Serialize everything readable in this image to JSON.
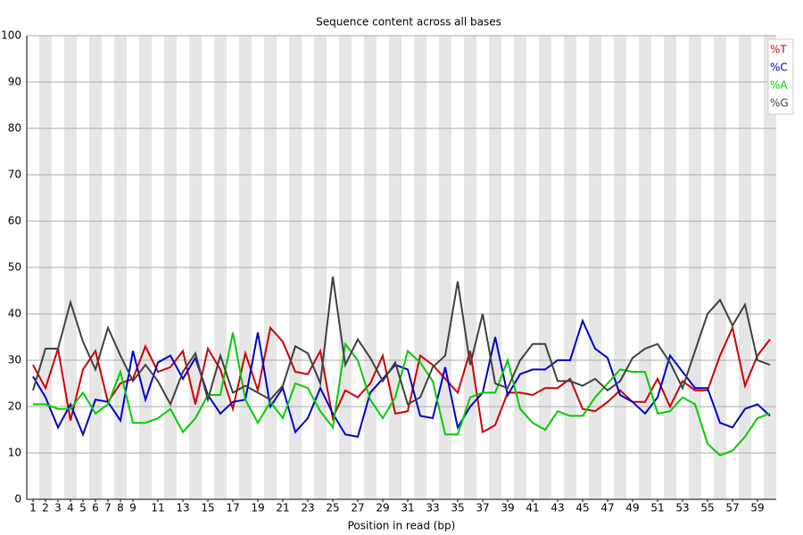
{
  "chart_data": {
    "type": "line",
    "title": "Sequence content across all bases",
    "xlabel": "Position in read (bp)",
    "x": [
      1,
      2,
      3,
      4,
      5,
      6,
      7,
      8,
      9,
      10,
      11,
      12,
      13,
      14,
      15,
      16,
      17,
      18,
      19,
      20,
      21,
      22,
      23,
      24,
      25,
      26,
      27,
      28,
      29,
      30,
      31,
      32,
      33,
      34,
      35,
      36,
      37,
      38,
      39,
      40,
      41,
      42,
      43,
      44,
      45,
      46,
      47,
      48,
      49,
      50,
      51,
      52,
      53,
      54,
      55,
      56,
      57,
      58,
      59,
      60
    ],
    "xlim": [
      0.5,
      60.5
    ],
    "xticks": [
      1,
      2,
      3,
      4,
      5,
      6,
      7,
      8,
      9,
      11,
      13,
      15,
      17,
      19,
      21,
      23,
      25,
      27,
      29,
      31,
      33,
      35,
      37,
      39,
      41,
      43,
      45,
      47,
      49,
      51,
      53,
      55,
      57,
      59
    ],
    "ylim": [
      0,
      100
    ],
    "yticks": [
      0,
      10,
      20,
      30,
      40,
      50,
      60,
      70,
      80,
      90,
      100
    ],
    "legend": "top-right",
    "band_color": "#e6e6e6",
    "series": [
      {
        "name": "%T",
        "color": "#cc0000",
        "values": [
          29,
          24,
          32.5,
          17,
          28,
          32,
          21,
          25,
          26,
          33,
          27.5,
          28.5,
          32,
          20.5,
          32.5,
          28,
          19.5,
          31.5,
          23.5,
          37,
          34,
          27.5,
          27,
          32,
          17.5,
          23.5,
          22,
          25,
          31,
          18.5,
          19,
          31,
          29,
          26,
          23,
          32,
          14.5,
          16,
          23,
          23,
          22.5,
          24,
          24,
          26,
          19.5,
          19,
          21,
          23.5,
          21,
          21,
          26,
          20,
          25.5,
          23.5,
          23.5,
          31,
          37,
          24.5,
          31,
          34.5
        ]
      },
      {
        "name": "%C",
        "color": "#0000cc",
        "values": [
          26.5,
          22,
          15.5,
          20.5,
          14,
          21.5,
          21,
          17,
          32,
          21.5,
          29.5,
          31,
          26,
          30.5,
          22.5,
          18.5,
          21,
          21.5,
          36,
          20,
          24,
          14.5,
          17.5,
          24,
          18.5,
          14,
          13.5,
          23,
          26,
          29,
          28,
          18,
          17.5,
          28.5,
          15.5,
          20,
          23,
          35,
          22.5,
          27,
          28,
          28,
          30,
          30,
          38.5,
          32.5,
          30.5,
          22.5,
          21,
          18.5,
          22,
          31,
          27.5,
          24,
          24,
          16.5,
          15.5,
          19.5,
          20.5,
          18
        ]
      },
      {
        "name": "%A",
        "color": "#00cc00",
        "values": [
          20.5,
          20.5,
          19.5,
          19.5,
          23,
          18.5,
          20.5,
          27.5,
          16.5,
          16.5,
          17.5,
          19.5,
          14.5,
          17.5,
          22.5,
          22.5,
          36,
          21.5,
          16.5,
          21,
          17.5,
          25,
          24,
          19,
          15.5,
          33.5,
          30,
          21.5,
          17.5,
          22,
          32,
          29.5,
          25.5,
          14,
          14,
          22,
          23,
          23,
          30,
          19.5,
          16.5,
          15,
          19,
          18,
          18,
          22,
          25,
          28,
          27.5,
          27.5,
          18.5,
          19,
          22,
          20.5,
          12,
          9.5,
          10.5,
          13.5,
          17.5,
          18.5
        ]
      },
      {
        "name": "%G",
        "color": "#404040",
        "values": [
          23.5,
          32.5,
          32.5,
          42.5,
          34,
          28,
          37,
          31,
          25.5,
          29,
          25.5,
          20.5,
          27.5,
          31.5,
          21.5,
          31,
          23,
          24.5,
          23,
          21.5,
          24.5,
          33,
          31.5,
          25,
          48,
          29,
          34.5,
          30.5,
          25.5,
          29.5,
          20.5,
          22,
          28.5,
          31,
          47,
          29,
          40,
          25,
          24,
          30,
          33.5,
          33.5,
          25.5,
          25.5,
          24.5,
          26,
          23.5,
          25.5,
          30.5,
          32.5,
          33.5,
          29.5,
          24,
          32,
          40,
          43,
          37.5,
          42,
          30,
          29
        ]
      }
    ]
  }
}
